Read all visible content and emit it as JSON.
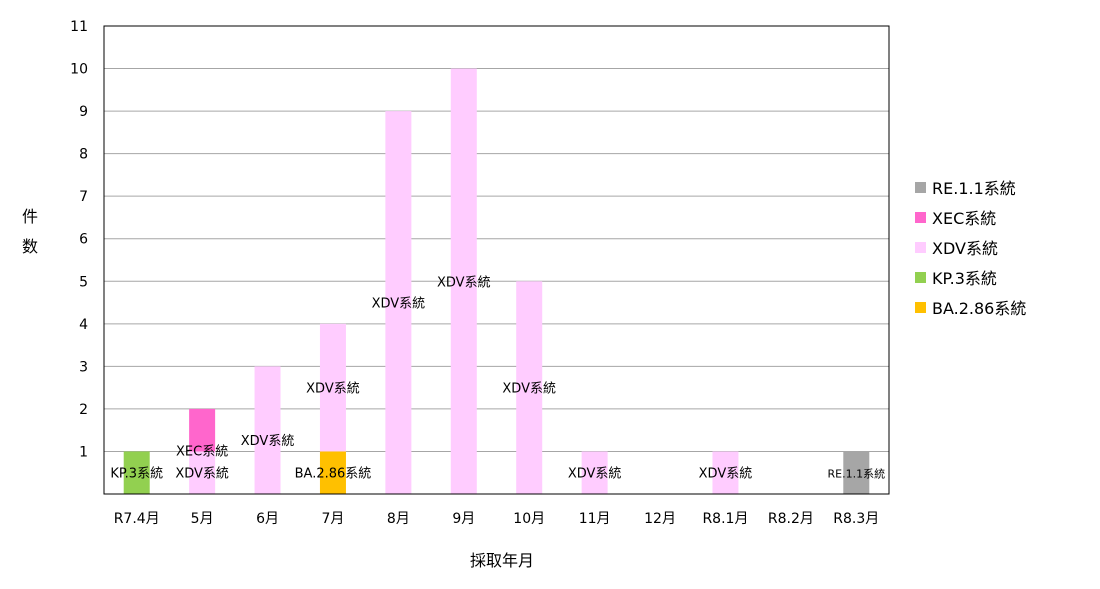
{
  "chart_data": {
    "type": "bar",
    "stacked": true,
    "xlabel": "採取年月",
    "ylabel": "件数",
    "ylim": [
      0,
      11
    ],
    "yticks": [
      "1",
      "2",
      "3",
      "4",
      "5",
      "6",
      "7",
      "8",
      "9",
      "10",
      "11"
    ],
    "grid": true,
    "legend_position": "right",
    "categories": [
      "R7.4月",
      "5月",
      "6月",
      "7月",
      "8月",
      "9月",
      "10月",
      "11月",
      "12月",
      "R8.1月",
      "R8.2月",
      "R8.3月"
    ],
    "series": [
      {
        "name": "BA.2.86系統",
        "color": "#ffc000",
        "values": [
          0,
          0,
          0,
          1,
          0,
          0,
          0,
          0,
          0,
          0,
          0,
          0
        ]
      },
      {
        "name": "KP.3系統",
        "color": "#92d050",
        "values": [
          1,
          0,
          0,
          0,
          0,
          0,
          0,
          0,
          0,
          0,
          0,
          0
        ]
      },
      {
        "name": "XDV系統",
        "color": "#ffccff",
        "values": [
          0,
          1,
          3,
          3,
          9,
          10,
          5,
          1,
          0,
          1,
          0,
          0
        ]
      },
      {
        "name": "XEC系統",
        "color": "#ff66cc",
        "values": [
          0,
          1,
          0,
          0,
          0,
          0,
          0,
          0,
          0,
          0,
          0,
          0
        ]
      },
      {
        "name": "RE.1.1系統",
        "color": "#a6a6a6",
        "values": [
          0,
          0,
          0,
          0,
          0,
          0,
          0,
          0,
          0,
          0,
          0,
          1
        ]
      }
    ],
    "legend_order": [
      "RE.1.1系統",
      "XEC系統",
      "XDV系統",
      "KP.3系統",
      "BA.2.86系統"
    ],
    "data_labels": [
      {
        "category": "R7.4月",
        "series": "KP.3系統",
        "text": "KP.3系統"
      },
      {
        "category": "5月",
        "series": "XDV系統",
        "text": "XDV系統"
      },
      {
        "category": "5月",
        "series": "XEC系統",
        "text": "XEC系統"
      },
      {
        "category": "6月",
        "series": "XDV系統",
        "text": "XDV系統"
      },
      {
        "category": "7月",
        "series": "BA.2.86系統",
        "text": "BA.2.86系統"
      },
      {
        "category": "7月",
        "series": "XDV系統",
        "text": "XDV系統"
      },
      {
        "category": "8月",
        "series": "XDV系統",
        "text": "XDV系統"
      },
      {
        "category": "9月",
        "series": "XDV系統",
        "text": "XDV系統"
      },
      {
        "category": "10月",
        "series": "XDV系統",
        "text": "XDV系統"
      },
      {
        "category": "11月",
        "series": "XDV系統",
        "text": "XDV系統"
      },
      {
        "category": "R8.1月",
        "series": "XDV系統",
        "text": "XDV系統"
      },
      {
        "category": "R8.3月",
        "series": "RE.1.1系統",
        "text": "RE.1.1系統"
      }
    ]
  }
}
